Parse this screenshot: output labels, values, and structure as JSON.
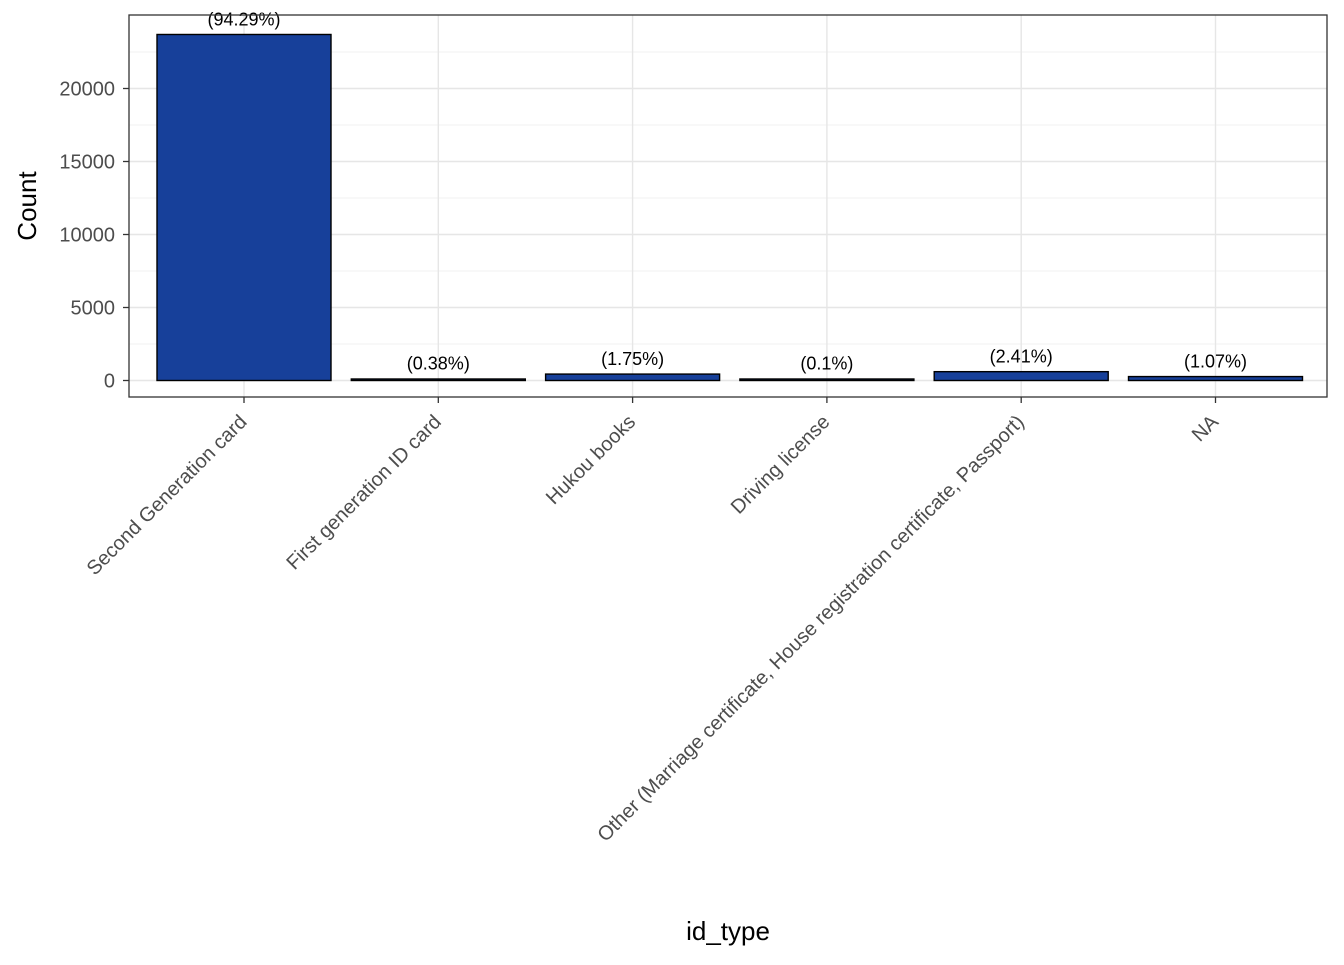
{
  "chart_data": {
    "type": "bar",
    "xlabel": "id_type",
    "ylabel": "Count",
    "ylim": [
      0,
      25000
    ],
    "yticks": [
      0,
      5000,
      10000,
      15000,
      20000
    ],
    "categories": [
      "Second Generation card",
      "First generation ID card",
      "Hukou books",
      "Driving license",
      "Other (Marriage certificate, House registration certificate, Passport)",
      "NA"
    ],
    "values": [
      23700,
      95,
      440,
      25,
      605,
      269
    ],
    "labels": [
      "(94.29%)",
      "(0.38%)",
      "(1.75%)",
      "(0.1%)",
      "(2.41%)",
      "(1.07%)"
    ],
    "bar_color": "#17409a",
    "bar_outline": "#000000",
    "grid": true,
    "legend": "none"
  }
}
